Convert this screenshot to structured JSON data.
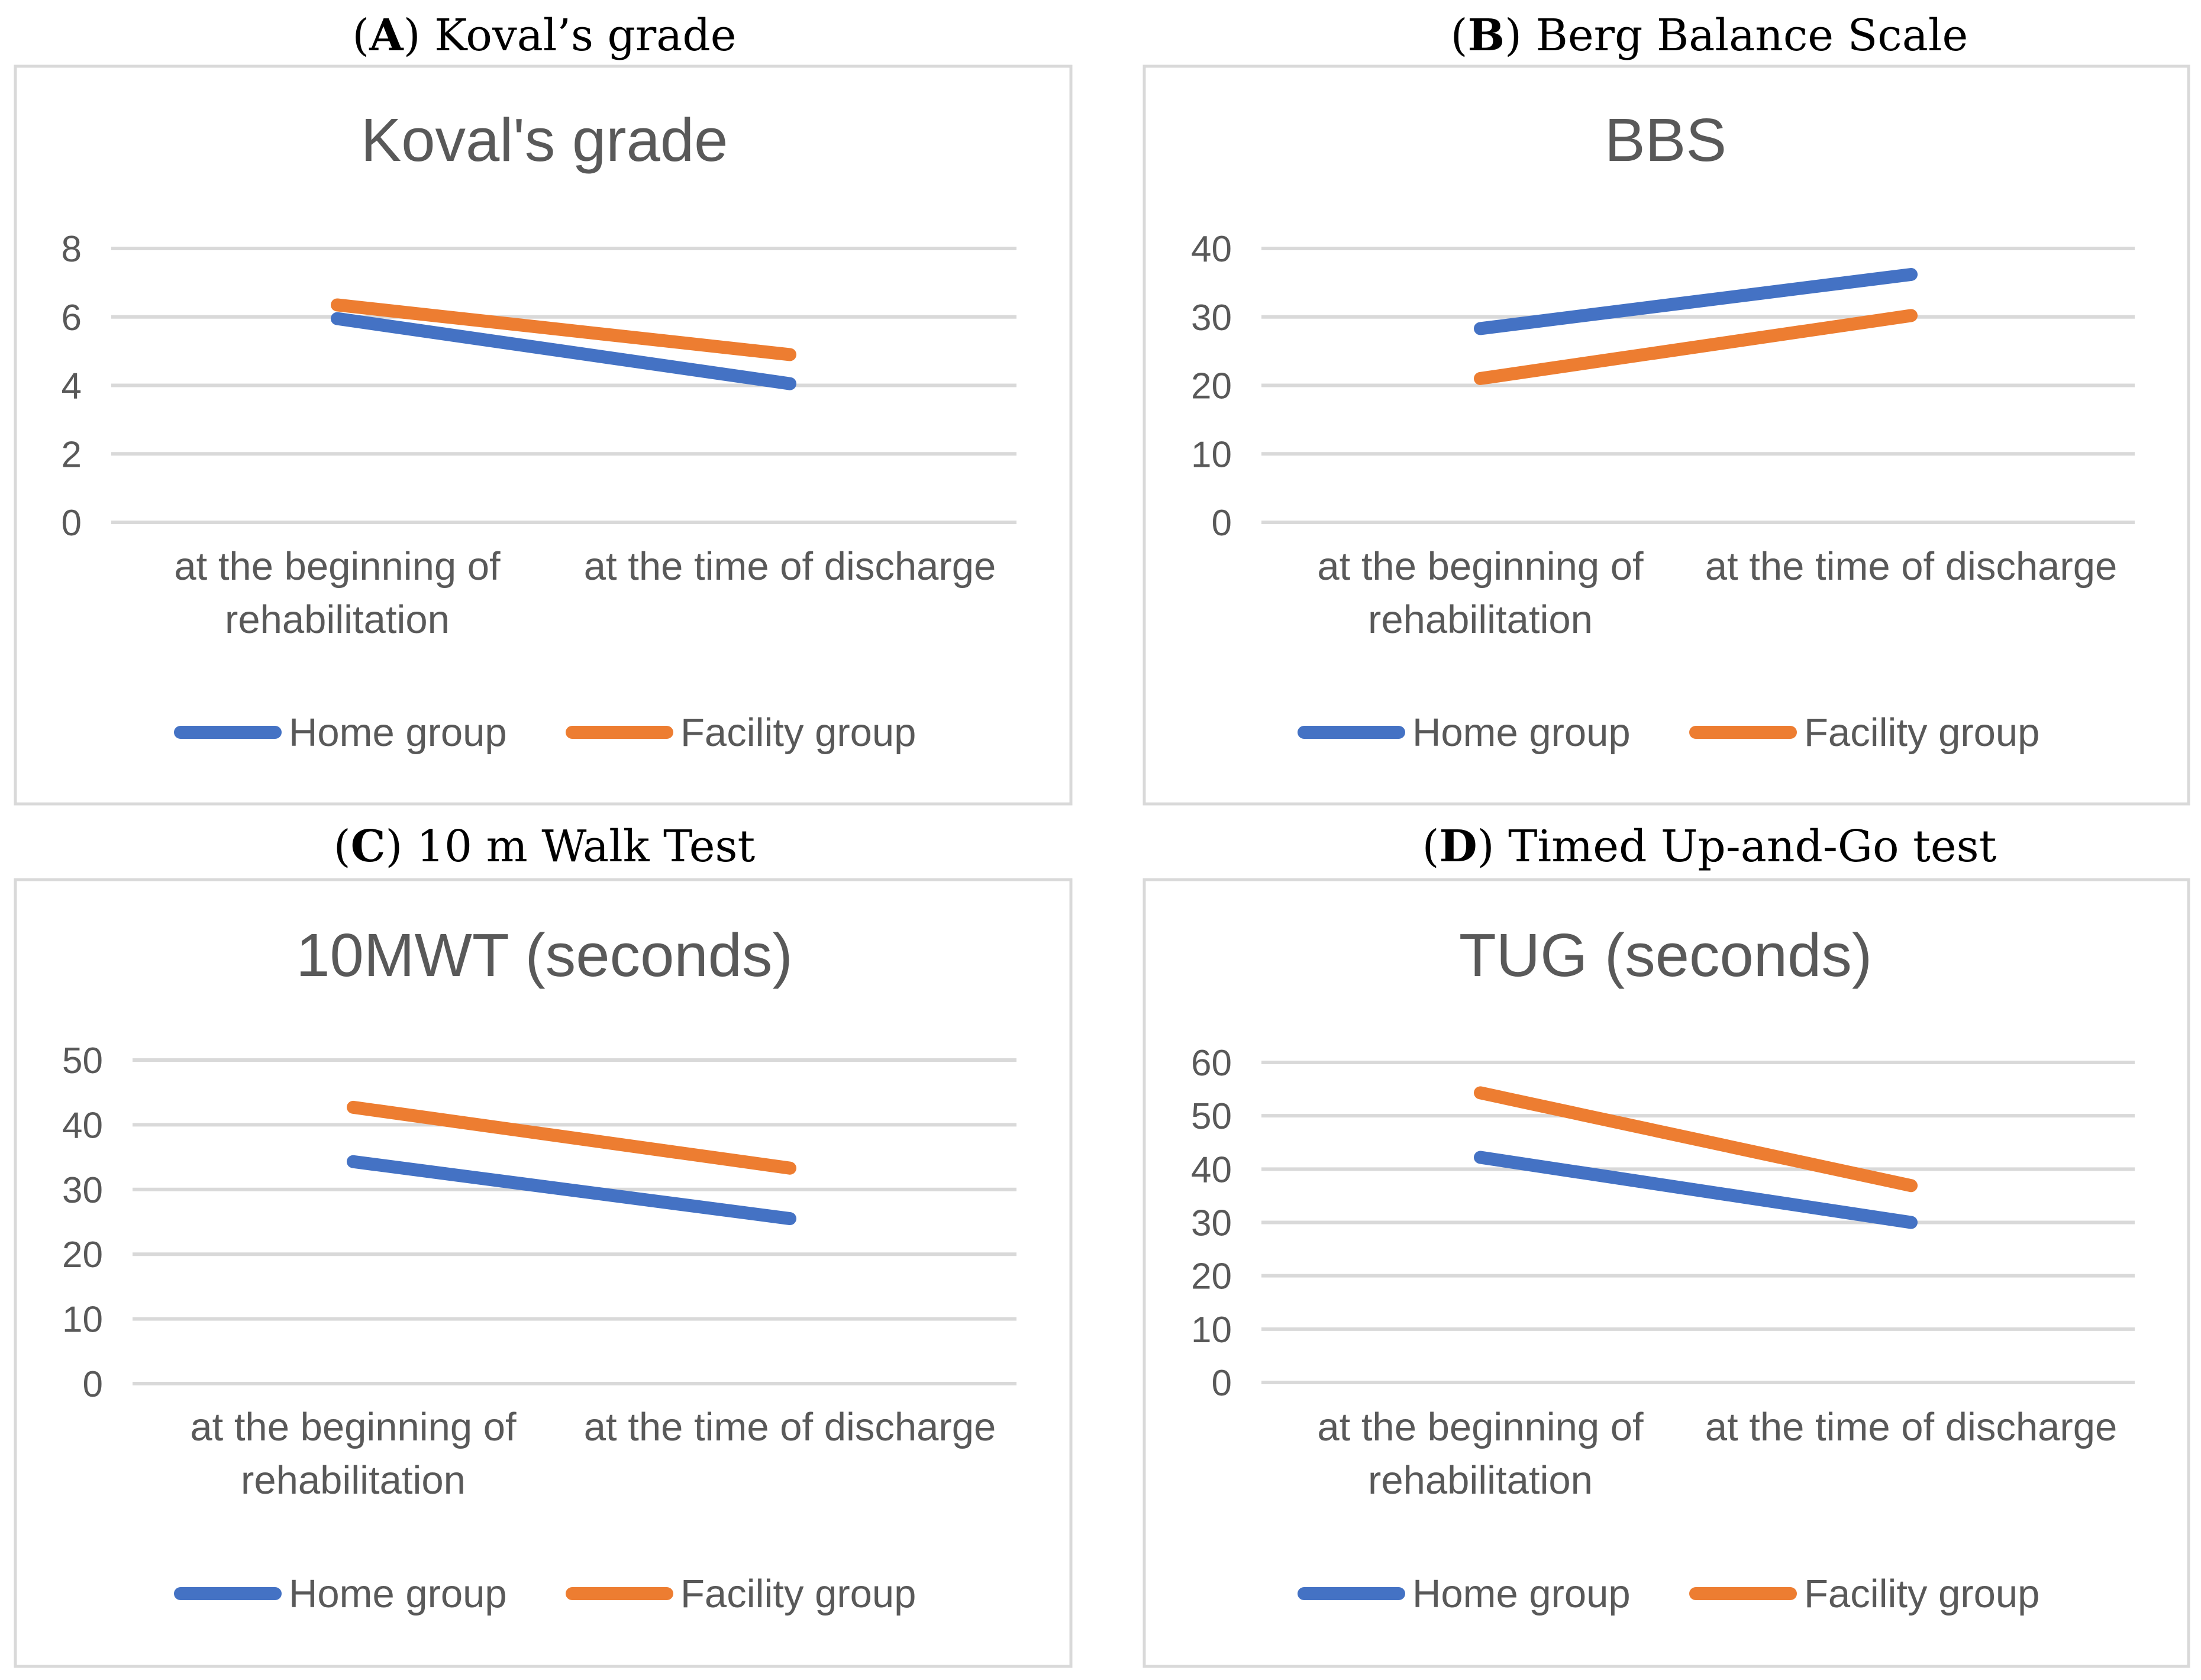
{
  "colors": {
    "home": "#4472C4",
    "facility": "#ED7D31",
    "text": "#595959",
    "grid": "#D9D9D9"
  },
  "panels": [
    {
      "letter": "A",
      "caption": "Koval’s grade"
    },
    {
      "letter": "B",
      "caption": "Berg Balance Scale"
    },
    {
      "letter": "C",
      "caption": "10 m Walk Test"
    },
    {
      "letter": "D",
      "caption": "Timed Up-and-Go test"
    }
  ],
  "chart_data": [
    {
      "type": "line",
      "title": "Koval's grade",
      "categories": [
        [
          "at the beginning of",
          "rehabilitation"
        ],
        [
          "at the time of discharge"
        ]
      ],
      "ylim": [
        0,
        8
      ],
      "yticks": [
        "0",
        "2",
        "4",
        "6",
        "8"
      ],
      "grid": true,
      "legend": "bottom",
      "series": [
        {
          "name": "Home group",
          "values": [
            5.95,
            4.05
          ]
        },
        {
          "name": "Facility group",
          "values": [
            6.35,
            4.9
          ]
        }
      ]
    },
    {
      "type": "line",
      "title": "BBS",
      "categories": [
        [
          "at the beginning of",
          "rehabilitation"
        ],
        [
          "at the time of discharge"
        ]
      ],
      "ylim": [
        0,
        40
      ],
      "yticks": [
        "0",
        "10",
        "20",
        "30",
        "40"
      ],
      "grid": true,
      "legend": "bottom",
      "series": [
        {
          "name": "Home group",
          "values": [
            28.3,
            36.2
          ]
        },
        {
          "name": "Facility group",
          "values": [
            21.0,
            30.2
          ]
        }
      ]
    },
    {
      "type": "line",
      "title": "10MWT (seconds)",
      "categories": [
        [
          "at the beginning of",
          "rehabilitation"
        ],
        [
          "at the time of discharge"
        ]
      ],
      "ylim": [
        0,
        50
      ],
      "yticks": [
        "0",
        "10",
        "20",
        "30",
        "40",
        "50"
      ],
      "grid": true,
      "legend": "bottom",
      "series": [
        {
          "name": "Home group",
          "values": [
            34.3,
            25.5
          ]
        },
        {
          "name": "Facility group",
          "values": [
            42.7,
            33.3
          ]
        }
      ]
    },
    {
      "type": "line",
      "title": "TUG (seconds)",
      "categories": [
        [
          "at the beginning of",
          "rehabilitation"
        ],
        [
          "at the time of discharge"
        ]
      ],
      "ylim": [
        0,
        60
      ],
      "yticks": [
        "0",
        "10",
        "20",
        "30",
        "40",
        "50",
        "60"
      ],
      "grid": true,
      "legend": "bottom",
      "series": [
        {
          "name": "Home group",
          "values": [
            42.2,
            30.0
          ]
        },
        {
          "name": "Facility group",
          "values": [
            54.3,
            36.9
          ]
        }
      ]
    }
  ]
}
